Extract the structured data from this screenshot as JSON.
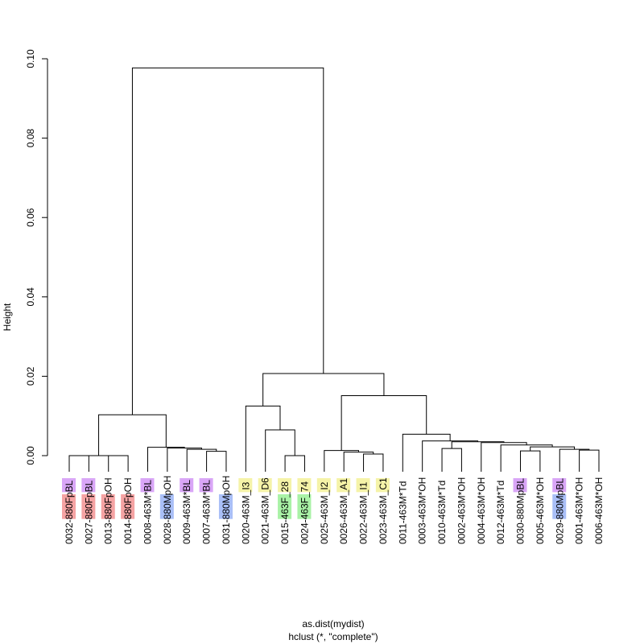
{
  "chart_data": {
    "type": "dendrogram",
    "ylabel": "Height",
    "xlabel": "as.dist(mydist)",
    "sub": "hclust (*, \"complete\")",
    "ylim": [
      0,
      0.1
    ],
    "y_ticks": [
      "0.00",
      "0.02",
      "0.04",
      "0.06",
      "0.08",
      "0.10"
    ],
    "y_tick_values": [
      0,
      0.02,
      0.04,
      0.06,
      0.08,
      0.1
    ],
    "colors": {
      "purple": "#d9a6f7",
      "red": "#f5a3a3",
      "blue": "#a9bff7",
      "yellow": "#f5f3a8",
      "green": "#a9f2a6"
    },
    "leaves": [
      {
        "label": "0032-880FpBL",
        "highlights": [
          {
            "text": "BL",
            "color": "purple"
          },
          {
            "text": "880F",
            "color": "red"
          }
        ]
      },
      {
        "label": "0027-880FpBL",
        "highlights": [
          {
            "text": "BL",
            "color": "purple"
          },
          {
            "text": "880F",
            "color": "red"
          }
        ]
      },
      {
        "label": "0013-880FpOH",
        "highlights": [
          {
            "text": "880F",
            "color": "red"
          }
        ]
      },
      {
        "label": "0014-880FpOH",
        "highlights": [
          {
            "text": "880F",
            "color": "red"
          }
        ]
      },
      {
        "label": "0008-463M*BL",
        "highlights": [
          {
            "text": "BL",
            "color": "purple"
          }
        ]
      },
      {
        "label": "0028-880MpOH",
        "highlights": [
          {
            "text": "880M",
            "color": "blue"
          }
        ]
      },
      {
        "label": "0009-463M*BL",
        "highlights": [
          {
            "text": "BL",
            "color": "purple"
          }
        ]
      },
      {
        "label": "0007-463M*BL",
        "highlights": [
          {
            "text": "BL",
            "color": "purple"
          }
        ]
      },
      {
        "label": "0031-880MpOH",
        "highlights": [
          {
            "text": "880M",
            "color": "blue"
          }
        ]
      },
      {
        "label": "0020-463M_I3",
        "highlights": [
          {
            "text": "I3",
            "color": "yellow"
          }
        ]
      },
      {
        "label": "0021-463M_D6",
        "highlights": [
          {
            "text": "D6",
            "color": "yellow"
          }
        ]
      },
      {
        "label": "0015-463F_28",
        "highlights": [
          {
            "text": "463F",
            "color": "green"
          },
          {
            "text": "28",
            "color": "yellow"
          }
        ]
      },
      {
        "label": "0024-463F_74",
        "highlights": [
          {
            "text": "463F",
            "color": "green"
          },
          {
            "text": "74",
            "color": "yellow"
          }
        ]
      },
      {
        "label": "0025-463M_I2",
        "highlights": [
          {
            "text": "I2",
            "color": "yellow"
          }
        ]
      },
      {
        "label": "0026-463M_A1",
        "highlights": [
          {
            "text": "A1",
            "color": "yellow"
          }
        ]
      },
      {
        "label": "0022-463M_I1",
        "highlights": [
          {
            "text": "I1",
            "color": "yellow"
          }
        ]
      },
      {
        "label": "0023-463M_C1",
        "highlights": [
          {
            "text": "C1",
            "color": "yellow"
          }
        ]
      },
      {
        "label": "0011-463M*Td",
        "highlights": []
      },
      {
        "label": "0003-463M*OH",
        "highlights": []
      },
      {
        "label": "0010-463M*Td",
        "highlights": []
      },
      {
        "label": "0002-463M*OH",
        "highlights": []
      },
      {
        "label": "0004-463M*OH",
        "highlights": []
      },
      {
        "label": "0012-463M*Td",
        "highlights": []
      },
      {
        "label": "0030-880MpBL",
        "highlights": [
          {
            "text": "BL",
            "color": "purple"
          }
        ]
      },
      {
        "label": "0005-463M*OH",
        "highlights": []
      },
      {
        "label": "0029-880MpBL",
        "highlights": [
          {
            "text": "BL",
            "color": "purple"
          },
          {
            "text": "880M",
            "color": "blue"
          }
        ]
      },
      {
        "label": "0001-463M*OH",
        "highlights": []
      },
      {
        "label": "0006-463M*OH",
        "highlights": []
      }
    ],
    "merges": [
      {
        "a": 0,
        "b": 1,
        "h": 0.0
      },
      {
        "a": 2,
        "b": 3,
        "h": 0.0
      },
      {
        "a": "m0",
        "b": "m1",
        "h": 0.0
      },
      {
        "a": 7,
        "b": 8,
        "h": 0.0011
      },
      {
        "a": 6,
        "b": "m3",
        "h": 0.0016
      },
      {
        "a": 5,
        "b": "m4",
        "h": 0.0019
      },
      {
        "a": 4,
        "b": "m5",
        "h": 0.0021
      },
      {
        "a": "m2",
        "b": "m6",
        "h": 0.0103
      },
      {
        "a": 11,
        "b": 12,
        "h": 0.0
      },
      {
        "a": 10,
        "b": "m8",
        "h": 0.0065
      },
      {
        "a": 9,
        "b": "m9",
        "h": 0.0125
      },
      {
        "a": 15,
        "b": 16,
        "h": 0.0004
      },
      {
        "a": 14,
        "b": "m11",
        "h": 0.0009
      },
      {
        "a": 13,
        "b": "m12",
        "h": 0.0013
      },
      {
        "a": 19,
        "b": 20,
        "h": 0.0018
      },
      {
        "a": 23,
        "b": 24,
        "h": 0.0012
      },
      {
        "a": 26,
        "b": 27,
        "h": 0.0014
      },
      {
        "a": 25,
        "b": "m16",
        "h": 0.0016
      },
      {
        "a": "m15",
        "b": "m17",
        "h": 0.0022
      },
      {
        "a": 22,
        "b": "m18",
        "h": 0.0027
      },
      {
        "a": 21,
        "b": "m19",
        "h": 0.0033
      },
      {
        "a": "m14",
        "b": "m20",
        "h": 0.0035
      },
      {
        "a": 18,
        "b": "m21",
        "h": 0.0037
      },
      {
        "a": 17,
        "b": "m22",
        "h": 0.0054
      },
      {
        "a": "m13",
        "b": "m23",
        "h": 0.0151
      },
      {
        "a": "m10",
        "b": "m24",
        "h": 0.0207
      },
      {
        "a": "m7",
        "b": "m25",
        "h": 0.0977
      }
    ]
  }
}
